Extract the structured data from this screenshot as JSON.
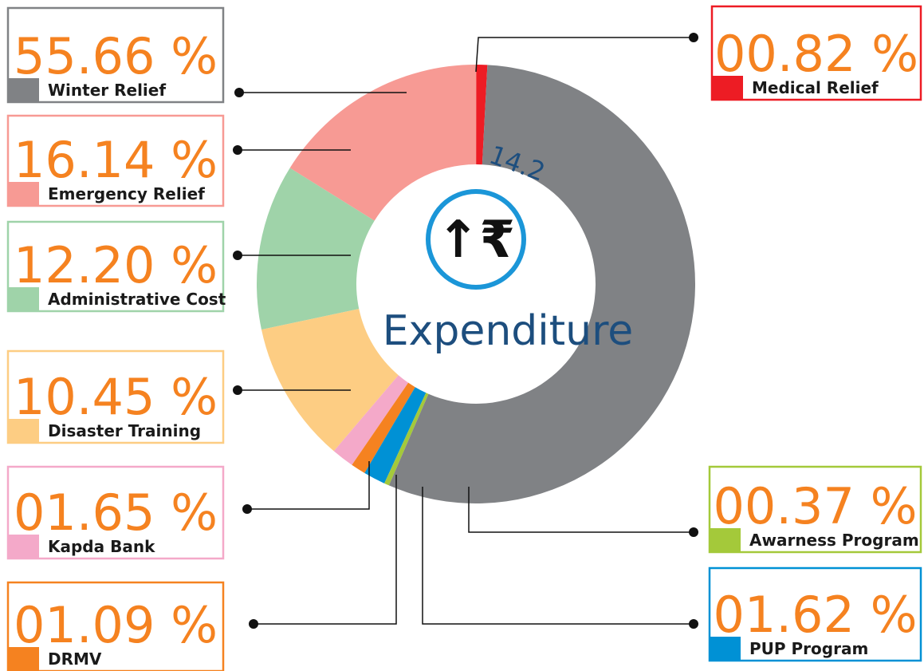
{
  "chart_data": {
    "type": "pie",
    "donut": true,
    "title": "Expenditure",
    "center_label": "14.2",
    "center_icon": "↑₹",
    "categories": [
      "Winter Relief",
      "Awarness Program",
      "PUP Program",
      "DRMV",
      "Kapda Bank",
      "Disaster Training",
      "Administrative Cost",
      "Emergency Relief",
      "Medical Relief"
    ],
    "values": [
      55.66,
      0.37,
      1.62,
      1.09,
      1.65,
      10.45,
      12.2,
      16.14,
      0.82
    ],
    "value_labels": [
      "55.66 %",
      "00.37 %",
      "01.62 %",
      "01.09 %",
      "01.65 %",
      "10.45 %",
      "12.20 %",
      "16.14 %",
      "00.82 %"
    ],
    "colors": [
      "#808285",
      "#a4c93a",
      "#0091d5",
      "#f58220",
      "#f4a9c9",
      "#fdcd83",
      "#9fd3a9",
      "#f79a94",
      "#ed1c24"
    ]
  }
}
